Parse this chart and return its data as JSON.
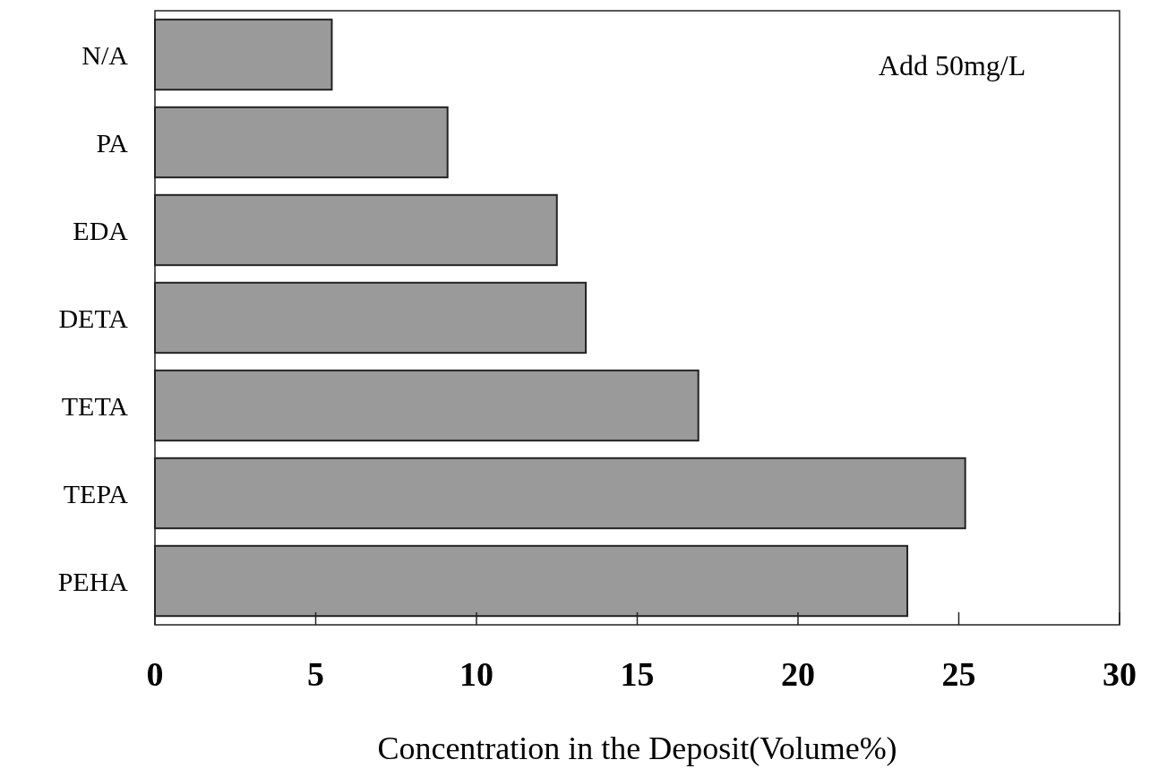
{
  "chart_data": {
    "type": "bar",
    "orientation": "horizontal",
    "categories": [
      "N/A",
      "PA",
      "EDA",
      "DETA",
      "TETA",
      "TEPA",
      "PEHA"
    ],
    "values": [
      5.5,
      9.1,
      12.5,
      13.4,
      16.9,
      25.2,
      23.4
    ],
    "color": "#9a9a9a",
    "xlim": [
      0,
      30
    ],
    "xticks": [
      0,
      5,
      10,
      15,
      20,
      25,
      30
    ],
    "xlabel": "Concentration in the Deposit(Volume%)",
    "annotations": [
      "Add 50mg/L"
    ]
  }
}
